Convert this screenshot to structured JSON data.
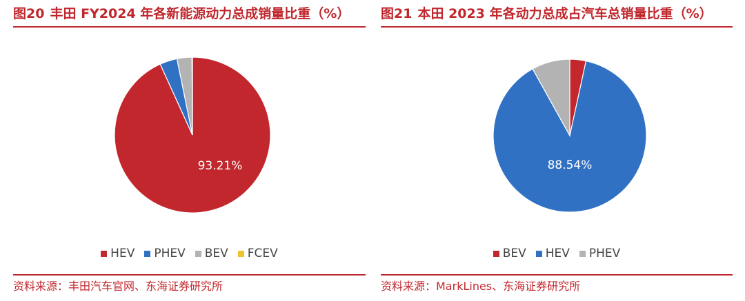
{
  "figures": [
    {
      "number": "图20",
      "title": "丰田 FY2024 年各新能源动力总成销量比重（%）",
      "source": "资料来源：丰田汽车官网、东海证券研究所",
      "legend": [
        {
          "label": "HEV",
          "color": "#c1272d"
        },
        {
          "label": "PHEV",
          "color": "#3171c4"
        },
        {
          "label": "BEV",
          "color": "#b3b3b3"
        },
        {
          "label": "FCEV",
          "color": "#f2c12e"
        }
      ]
    },
    {
      "number": "图21",
      "title": "本田 2023 年各动力总成占汽车总销量比重（%）",
      "source": "资料来源：MarkLines、东海证券研究所",
      "legend": [
        {
          "label": "BEV",
          "color": "#c1272d"
        },
        {
          "label": "HEV",
          "color": "#3171c4"
        },
        {
          "label": "PHEV",
          "color": "#b3b3b3"
        }
      ]
    }
  ],
  "chart_data": [
    {
      "type": "pie",
      "title": "丰田 FY2024 年各新能源动力总成销量比重（%）",
      "slices": [
        {
          "label": "HEV",
          "value": 93.21,
          "color": "#c1272d",
          "data_label": "93.21%"
        },
        {
          "label": "PHEV",
          "value": 3.6,
          "color": "#3171c4"
        },
        {
          "label": "BEV",
          "value": 3.1,
          "color": "#b3b3b3"
        },
        {
          "label": "FCEV",
          "value": 0.09,
          "color": "#f2c12e"
        }
      ],
      "legend_position": "bottom"
    },
    {
      "type": "pie",
      "title": "本田 2023 年各动力总成占汽车总销量比重（%）",
      "slices": [
        {
          "label": "BEV",
          "value": 3.4,
          "color": "#c1272d"
        },
        {
          "label": "HEV",
          "value": 88.54,
          "color": "#3171c4",
          "data_label": "88.54%"
        },
        {
          "label": "PHEV",
          "value": 8.06,
          "color": "#b3b3b3"
        }
      ],
      "legend_position": "bottom"
    }
  ]
}
